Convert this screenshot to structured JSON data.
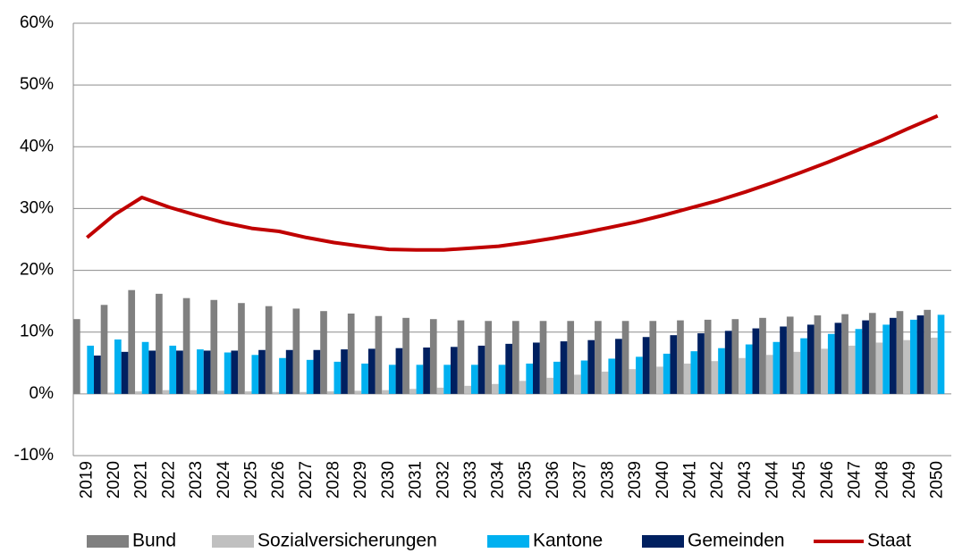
{
  "chart_data": {
    "type": "bar",
    "categories": [
      "2019",
      "2020",
      "2021",
      "2022",
      "2023",
      "2024",
      "2025",
      "2026",
      "2027",
      "2028",
      "2029",
      "2030",
      "2031",
      "2032",
      "2033",
      "2034",
      "2035",
      "2036",
      "2037",
      "2038",
      "2039",
      "2040",
      "2041",
      "2042",
      "2043",
      "2044",
      "2045",
      "2046",
      "2047",
      "2048",
      "2049",
      "2050"
    ],
    "series": [
      {
        "name": "Bund",
        "color": "#808080",
        "values": [
          12.1,
          14.4,
          16.8,
          16.2,
          15.5,
          15.2,
          14.7,
          14.2,
          13.8,
          13.4,
          13.0,
          12.6,
          12.3,
          12.1,
          11.9,
          11.8,
          11.8,
          11.8,
          11.8,
          11.8,
          11.8,
          11.8,
          11.9,
          12.0,
          12.1,
          12.3,
          12.5,
          12.7,
          12.9,
          13.1,
          13.4,
          13.6
        ]
      },
      {
        "name": "Sozialversicherungen",
        "color": "#c0c0c0",
        "values": [
          0.1,
          0.2,
          0.4,
          0.6,
          0.6,
          0.5,
          0.4,
          0.3,
          0.3,
          0.4,
          0.5,
          0.6,
          0.8,
          1.0,
          1.3,
          1.6,
          2.1,
          2.6,
          3.1,
          3.6,
          4.0,
          4.4,
          4.9,
          5.3,
          5.8,
          6.3,
          6.8,
          7.3,
          7.8,
          8.3,
          8.7,
          9.1
        ]
      },
      {
        "name": "Kantone",
        "color": "#00b0f0",
        "values": [
          7.8,
          8.8,
          8.4,
          7.8,
          7.2,
          6.7,
          6.3,
          5.8,
          5.5,
          5.2,
          4.9,
          4.7,
          4.7,
          4.7,
          4.7,
          4.7,
          4.9,
          5.2,
          5.4,
          5.7,
          6.0,
          6.5,
          6.9,
          7.4,
          8.0,
          8.4,
          9.0,
          9.7,
          10.5,
          11.2,
          12.0,
          12.8
        ]
      },
      {
        "name": "Gemeinden",
        "color": "#002060",
        "values": [
          6.2,
          6.8,
          7.0,
          7.0,
          7.0,
          7.0,
          7.1,
          7.1,
          7.1,
          7.2,
          7.3,
          7.4,
          7.5,
          7.6,
          7.8,
          8.1,
          8.3,
          8.5,
          8.7,
          8.9,
          9.2,
          9.5,
          9.8,
          10.2,
          10.6,
          10.9,
          11.2,
          11.5,
          11.9,
          12.3,
          12.7,
          null
        ]
      },
      {
        "name": "Staat",
        "color": "#c00000",
        "type": "line",
        "values": [
          25.3,
          29.0,
          31.8,
          30.2,
          28.9,
          27.7,
          26.8,
          26.3,
          25.3,
          24.5,
          23.9,
          23.4,
          23.3,
          23.3,
          23.6,
          23.9,
          24.5,
          25.2,
          26.0,
          26.9,
          27.8,
          28.9,
          30.1,
          31.3,
          32.7,
          34.2,
          35.8,
          37.5,
          39.3,
          41.1,
          43.1,
          45.0
        ]
      }
    ],
    "ylim": [
      -10,
      60
    ],
    "yticks": [
      {
        "value": -10,
        "label": "-10%"
      },
      {
        "value": 0,
        "label": "0%"
      },
      {
        "value": 10,
        "label": "10%"
      },
      {
        "value": 20,
        "label": "20%"
      },
      {
        "value": 30,
        "label": "30%"
      },
      {
        "value": 40,
        "label": "40%"
      },
      {
        "value": 50,
        "label": "50%"
      },
      {
        "value": 60,
        "label": "60%"
      }
    ],
    "grid": true,
    "legend": "bottom"
  }
}
